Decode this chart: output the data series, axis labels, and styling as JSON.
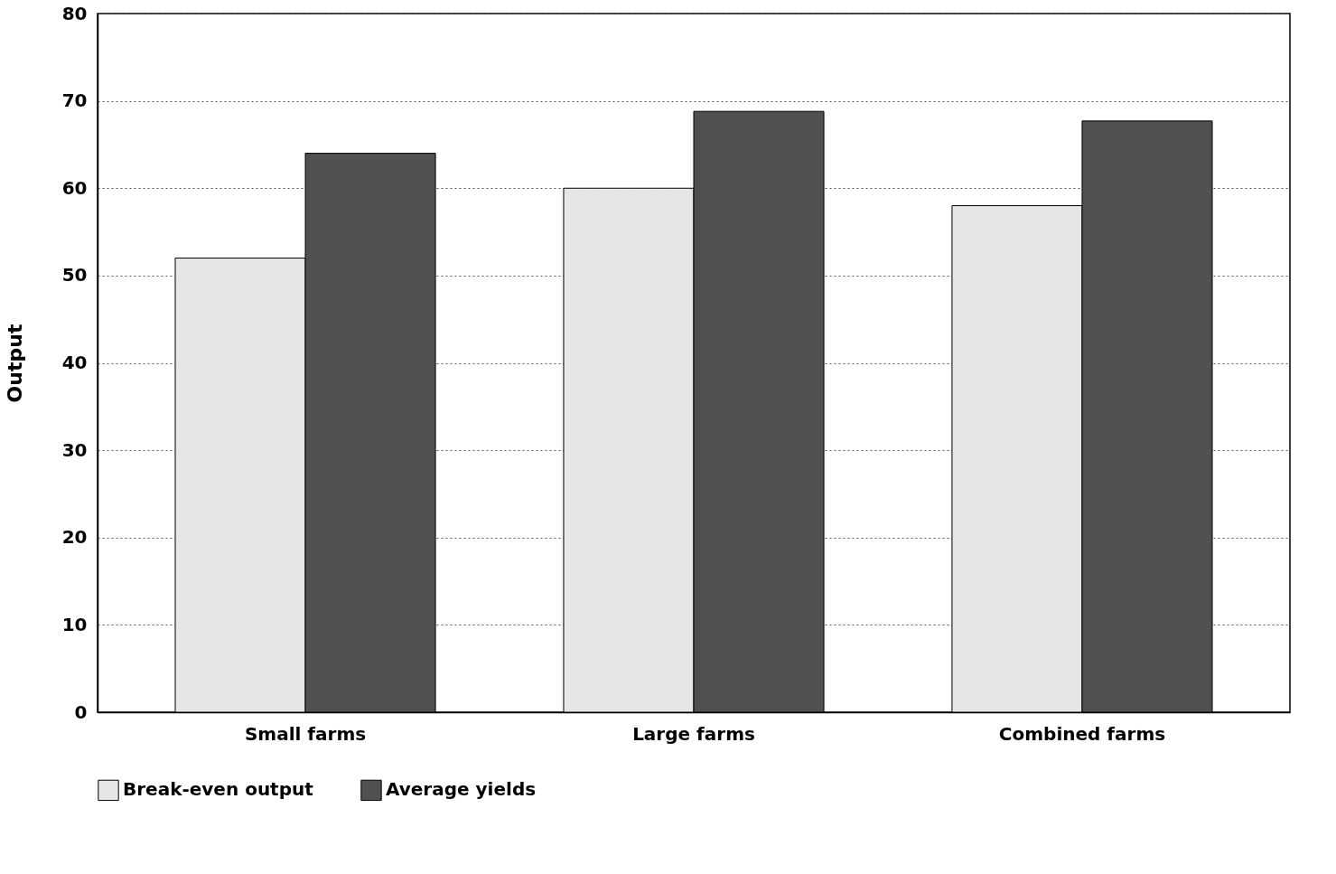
{
  "chart_data": {
    "type": "bar",
    "ylabel": "Output",
    "categories": [
      "Small farms",
      "Large farms",
      "Combined farms"
    ],
    "series": [
      {
        "name": "Break-even output",
        "color": "#e6e6e6",
        "values": [
          52,
          60,
          58
        ]
      },
      {
        "name": "Average yields",
        "color": "#505050",
        "values": [
          64,
          68.8,
          67.7
        ]
      }
    ],
    "ylim": [
      0,
      80
    ],
    "yticks": [
      0,
      10,
      20,
      30,
      40,
      50,
      60,
      70,
      80
    ],
    "grid": "y",
    "legend": "bottom"
  }
}
